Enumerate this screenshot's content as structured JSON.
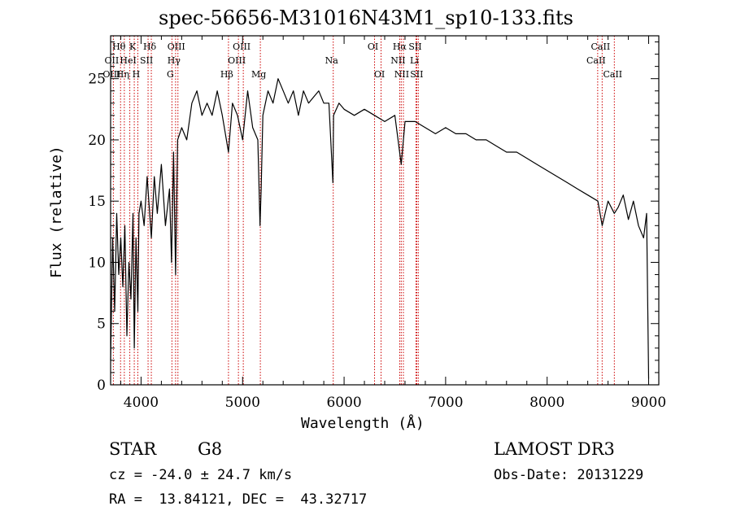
{
  "chart_data": {
    "type": "line",
    "title": "spec-56656-M31016N43M1_sp10-133.fits",
    "xlabel": "Wavelength (Å)",
    "ylabel": "Flux (relative)",
    "xlim": [
      3700,
      9100
    ],
    "ylim": [
      0,
      28.5
    ],
    "x_ticks": [
      4000,
      5000,
      6000,
      7000,
      8000,
      9000
    ],
    "x_tick_labels": [
      "4000",
      "5000",
      "6000",
      "7000",
      "8000",
      "9000"
    ],
    "y_ticks": [
      0,
      5,
      10,
      15,
      20,
      25
    ],
    "y_tick_labels": [
      "0",
      "5",
      "10",
      "15",
      "20",
      "25"
    ],
    "series": [
      {
        "name": "spectrum",
        "x": [
          3700,
          3720,
          3740,
          3760,
          3780,
          3800,
          3820,
          3840,
          3860,
          3880,
          3900,
          3920,
          3933,
          3950,
          3968,
          3980,
          4000,
          4030,
          4060,
          4101,
          4130,
          4160,
          4200,
          4240,
          4280,
          4300,
          4320,
          4340,
          4360,
          4400,
          4450,
          4500,
          4550,
          4600,
          4650,
          4700,
          4750,
          4800,
          4861,
          4900,
          4950,
          5000,
          5050,
          5100,
          5150,
          5172,
          5183,
          5200,
          5250,
          5300,
          5350,
          5400,
          5450,
          5500,
          5550,
          5600,
          5650,
          5700,
          5750,
          5800,
          5850,
          5890,
          5896,
          5950,
          6000,
          6100,
          6200,
          6300,
          6400,
          6500,
          6563,
          6600,
          6700,
          6800,
          6900,
          7000,
          7100,
          7200,
          7300,
          7400,
          7500,
          7600,
          7700,
          7800,
          7900,
          8000,
          8100,
          8200,
          8300,
          8400,
          8500,
          8542,
          8600,
          8662,
          8700,
          8750,
          8800,
          8850,
          8900,
          8950,
          8980,
          9000
        ],
        "y": [
          2,
          12,
          6,
          14,
          9,
          12,
          8,
          13,
          4,
          10,
          7,
          14,
          3,
          12,
          6,
          14,
          15,
          13,
          17,
          12,
          17,
          14,
          18,
          13,
          16,
          10,
          19,
          9,
          20,
          21,
          20,
          23,
          24,
          22,
          23,
          22,
          24,
          22,
          19,
          23,
          22,
          20,
          24,
          21,
          20,
          13,
          16,
          22,
          24,
          23,
          25,
          24,
          23,
          24,
          22,
          24,
          23,
          23.5,
          24,
          23,
          23,
          16.5,
          22,
          23,
          22.5,
          22,
          22.5,
          22,
          21.5,
          22,
          18,
          21.5,
          21.5,
          21,
          20.5,
          21,
          20.5,
          20.5,
          20,
          20,
          19.5,
          19,
          19,
          18.5,
          18,
          17.5,
          17,
          16.5,
          16,
          15.5,
          15,
          13,
          15,
          14,
          14.5,
          15.5,
          13.5,
          15,
          13,
          12,
          14,
          0.5
        ]
      }
    ],
    "annotations": [
      {
        "label": "Hθ",
        "wavelength": 3798,
        "row": 1
      },
      {
        "label": "OII",
        "wavelength": 3727,
        "row": 2
      },
      {
        "label": "OIII",
        "wavelength": 3727,
        "row": 3
      },
      {
        "label": "K",
        "wavelength": 3933,
        "row": 1
      },
      {
        "label": "HeI",
        "wavelength": 3889,
        "row": 2
      },
      {
        "label": "Hη",
        "wavelength": 3835,
        "row": 3
      },
      {
        "label": "SII",
        "wavelength": 4069,
        "row": 2
      },
      {
        "label": "H",
        "wavelength": 3968,
        "row": 3
      },
      {
        "label": "Hδ",
        "wavelength": 4101,
        "row": 1
      },
      {
        "label": "OIII",
        "wavelength": 4363,
        "row": 1
      },
      {
        "label": "Hγ",
        "wavelength": 4340,
        "row": 2
      },
      {
        "label": "G",
        "wavelength": 4304,
        "row": 3
      },
      {
        "label": "OIII",
        "wavelength": 5007,
        "row": 1
      },
      {
        "label": "OIII",
        "wavelength": 4959,
        "row": 2
      },
      {
        "label": "Hβ",
        "wavelength": 4861,
        "row": 3
      },
      {
        "label": "Mg",
        "wavelength": 5175,
        "row": 3
      },
      {
        "label": "Na",
        "wavelength": 5893,
        "row": 2
      },
      {
        "label": "OI",
        "wavelength": 6300,
        "row": 1
      },
      {
        "label": "OI",
        "wavelength": 6364,
        "row": 3
      },
      {
        "label": "Hα",
        "wavelength": 6563,
        "row": 1
      },
      {
        "label": "SII",
        "wavelength": 6716,
        "row": 1
      },
      {
        "label": "NII",
        "wavelength": 6548,
        "row": 2
      },
      {
        "label": "Li",
        "wavelength": 6708,
        "row": 2
      },
      {
        "label": "NII",
        "wavelength": 6584,
        "row": 3
      },
      {
        "label": "SII",
        "wavelength": 6731,
        "row": 3
      },
      {
        "label": "CaII",
        "wavelength": 8542,
        "row": 1
      },
      {
        "label": "CaII",
        "wavelength": 8498,
        "row": 2
      },
      {
        "label": "CaII",
        "wavelength": 8662,
        "row": 3
      }
    ],
    "line_marks": [
      3727,
      3798,
      3835,
      3889,
      3933,
      3968,
      4069,
      4101,
      4304,
      4340,
      4363,
      4861,
      4959,
      5007,
      5175,
      5893,
      6300,
      6364,
      6548,
      6563,
      6584,
      6708,
      6716,
      6731,
      8498,
      8542,
      8662
    ]
  },
  "info": {
    "object_class": "STAR",
    "subclass": "G8",
    "survey": "LAMOST DR3",
    "cz": "cz = -24.0 ± 24.7 km/s",
    "obs_date": "Obs-Date: 20131229",
    "coords": "RA =  13.84121, DEC =  43.32717"
  },
  "colors": {
    "axis": "#000000",
    "line_marks": "#cc0000",
    "spectrum": "#000000"
  }
}
